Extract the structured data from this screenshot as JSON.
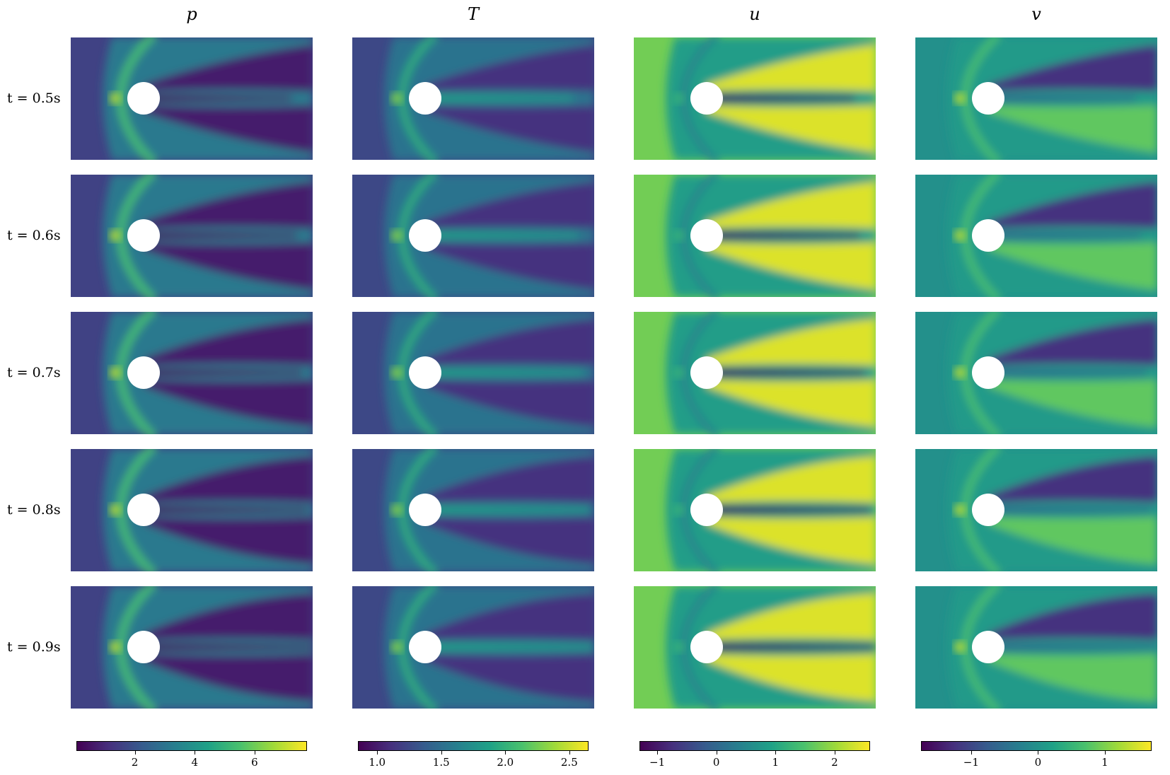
{
  "figure": {
    "columns": [
      {
        "key": "p",
        "title": "p",
        "colormap": "viridis",
        "colorbar": {
          "range": [
            0.05,
            7.75
          ],
          "ticks": [
            2,
            4,
            6
          ],
          "tick_labels": [
            "2",
            "4",
            "6"
          ]
        },
        "background_level": 0.2
      },
      {
        "key": "T",
        "title": "T",
        "colormap": "viridis",
        "colorbar": {
          "range": [
            0.85,
            2.65
          ],
          "ticks": [
            1.0,
            1.5,
            2.0,
            2.5
          ],
          "tick_labels": [
            "1.0",
            "1.5",
            "2.0",
            "2.5"
          ]
        },
        "background_level": 0.22
      },
      {
        "key": "u",
        "title": "u",
        "colormap": "viridis",
        "colorbar": {
          "range": [
            -1.3,
            2.6
          ],
          "ticks": [
            -1,
            0,
            1,
            2
          ],
          "tick_labels": [
            "−1",
            "0",
            "1",
            "2"
          ]
        },
        "background_level": 0.78
      },
      {
        "key": "v",
        "title": "v",
        "colormap": "viridis",
        "colorbar": {
          "range": [
            -1.75,
            1.7
          ],
          "ticks": [
            -1,
            0,
            1
          ],
          "tick_labels": [
            "−1",
            "0",
            "1"
          ]
        },
        "background_level": 0.5
      }
    ],
    "rows": [
      {
        "label": "t = 0.5s"
      },
      {
        "label": "t = 0.6s"
      },
      {
        "label": "t = 0.7s"
      },
      {
        "label": "t = 0.8s"
      },
      {
        "label": "t = 0.9s"
      }
    ],
    "colors": {
      "viridis_stops": [
        "#440154",
        "#46317e",
        "#365c8d",
        "#277f8e",
        "#1fa187",
        "#4ac16d",
        "#a0da39",
        "#fde725"
      ],
      "obstacle": "#ffffff",
      "background": "#ffffff"
    }
  }
}
